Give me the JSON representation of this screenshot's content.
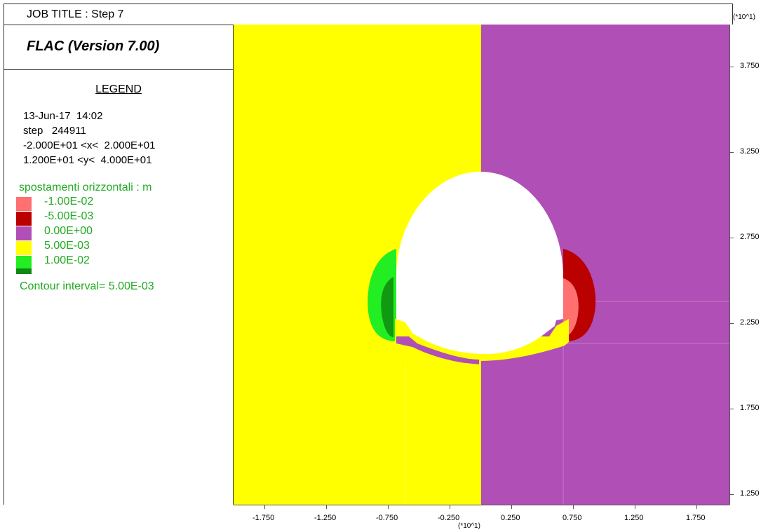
{
  "job_title": "JOB TITLE : Step 7",
  "version": "FLAC (Version 7.00)",
  "legend": {
    "title": "LEGEND",
    "date": "13-Jun-17  14:02",
    "step": "step   244911",
    "x_range": "-2.000E+01 <x<  2.000E+01",
    "y_range": "1.200E+01 <y<  4.000E+01",
    "variable": "spostamenti orizzontali : m",
    "items": [
      {
        "label": "-1.00E-02",
        "color": "#ff7070"
      },
      {
        "label": "-5.00E-03",
        "color": "#bb0000"
      },
      {
        "label": "0.00E+00",
        "color": "#b04fb5"
      },
      {
        "label": "5.00E-03",
        "color": "#ffff00"
      },
      {
        "label": "1.00E-02",
        "color": "#22ee22"
      }
    ],
    "bottom_swatch_color": "#118811",
    "contour_interval": "Contour interval=  5.00E-03"
  },
  "axes": {
    "scale_label_y": "(*10^1)",
    "scale_label_x": "(*10^1)",
    "y_ticks": [
      "3.750",
      "3.250",
      "2.750",
      "2.250",
      "1.750",
      "1.250"
    ],
    "x_ticks": [
      "-1.750",
      "-1.250",
      "-0.750",
      "-0.250",
      "0.250",
      "0.750",
      "1.250",
      "1.750"
    ]
  },
  "colors": {
    "yellow": "#ffff00",
    "purple": "#b04fb5",
    "white": "#ffffff",
    "green": "#22ee22",
    "darkred": "#bb0000",
    "pink": "#ff7070"
  }
}
